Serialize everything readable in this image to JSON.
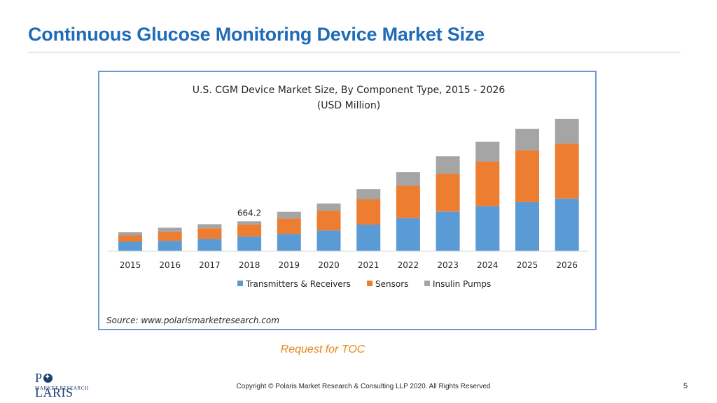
{
  "slide": {
    "title": "Continuous Glucose Monitoring Device Market Size",
    "request_link": "Request for TOC",
    "copyright": "Copyright © Polaris Market Research & Consulting LLP 2020. All Rights Reserved",
    "page_number": "5",
    "logo": {
      "brand": "POLARIS",
      "brand_left": "P",
      "brand_right": "LARIS",
      "tagline": "MARKET RESEARCH"
    }
  },
  "colors": {
    "title": "#1f6bb8",
    "transmitters": "#5b9bd5",
    "sensors": "#ed7d31",
    "insulin_pumps": "#a5a5a5",
    "link": "#e58a1a",
    "frame": "#6b9bd1"
  },
  "chart_data": {
    "type": "bar",
    "stacked": true,
    "title": "U.S. CGM Device Market Size, By Component  Type, 2015 - 2026",
    "subtitle": "(USD Million)",
    "categories": [
      "2015",
      "2016",
      "2017",
      "2018",
      "2019",
      "2020",
      "2021",
      "2022",
      "2023",
      "2024",
      "2025",
      "2026"
    ],
    "series": [
      {
        "name": "Transmitters & Receivers",
        "values": [
          210,
          230,
          270,
          325,
          385,
          460,
          590,
          735,
          880,
          1000,
          1090,
          1170
        ]
      },
      {
        "name": "Sensors",
        "values": [
          140,
          200,
          240,
          270,
          340,
          440,
          560,
          720,
          840,
          990,
          1150,
          1220
        ]
      },
      {
        "name": "Insulin Pumps",
        "values": [
          70,
          90,
          90,
          69.2,
          150,
          160,
          230,
          300,
          390,
          440,
          480,
          550
        ]
      }
    ],
    "data_labels": [
      {
        "category": "2018",
        "text": "664.2"
      }
    ],
    "ylim": [
      0,
      3000
    ],
    "y_axis_visible": false,
    "grid": false,
    "legend_position": "bottom",
    "source": "Source:  www.polarismarketresearch.com"
  }
}
